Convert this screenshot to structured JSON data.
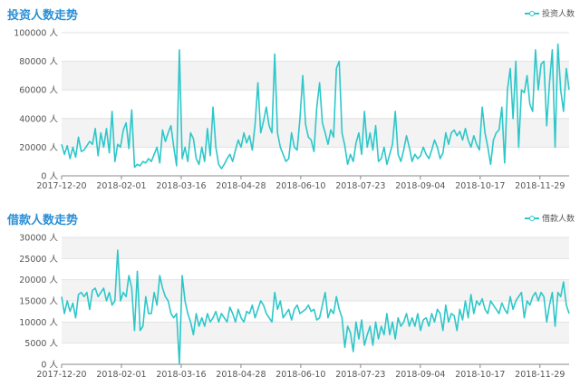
{
  "chart_data": [
    {
      "type": "line",
      "title": "投资人数走势",
      "legend": "投资人数",
      "legend_position": "top-right",
      "color": "#2ec7c9",
      "grid": true,
      "ylim": [
        0,
        100000
      ],
      "yticks": [
        "0 人",
        "20000 人",
        "40000 人",
        "60000 人",
        "80000 人",
        "100000 人"
      ],
      "xticks": [
        "2017-12-20",
        "2018-02-01",
        "2018-03-16",
        "2018-04-28",
        "2018-06-10",
        "2018-07-23",
        "2018-09-04",
        "2018-10-17",
        "2018-11-29"
      ],
      "x_start": "2017-12-20",
      "x_end": "2018-12-20",
      "series": [
        {
          "values": [
            22000,
            15000,
            21000,
            12000,
            20000,
            13000,
            27000,
            17000,
            18000,
            21000,
            24000,
            22000,
            33000,
            14000,
            30000,
            20000,
            33000,
            16000,
            45000,
            10000,
            22000,
            20000,
            32000,
            37000,
            19000,
            46000,
            6000,
            8000,
            7000,
            10000,
            9000,
            12000,
            10000,
            15000,
            20000,
            9000,
            32000,
            24000,
            30000,
            35000,
            20000,
            7000,
            88000,
            12000,
            20000,
            10000,
            30000,
            26000,
            12000,
            8000,
            20000,
            10000,
            33000,
            14000,
            48000,
            20000,
            8000,
            5000,
            8000,
            12000,
            15000,
            10000,
            18000,
            25000,
            20000,
            30000,
            23000,
            28000,
            18000,
            36000,
            65000,
            30000,
            38000,
            48000,
            35000,
            30000,
            85000,
            30000,
            20000,
            15000,
            10000,
            12000,
            30000,
            20000,
            18000,
            40000,
            70000,
            36000,
            27000,
            25000,
            17000,
            48000,
            65000,
            37000,
            30000,
            22000,
            32000,
            27000,
            75000,
            80000,
            30000,
            21000,
            8000,
            15000,
            10000,
            23000,
            30000,
            15000,
            45000,
            20000,
            30000,
            18000,
            35000,
            10000,
            12000,
            20000,
            8000,
            15000,
            22000,
            45000,
            15000,
            10000,
            18000,
            28000,
            20000,
            10000,
            15000,
            12000,
            14000,
            20000,
            15000,
            12000,
            18000,
            25000,
            20000,
            12000,
            16000,
            30000,
            22000,
            30000,
            32000,
            28000,
            31000,
            25000,
            33000,
            25000,
            20000,
            28000,
            22000,
            18000,
            48000,
            30000,
            20000,
            8000,
            25000,
            30000,
            32000,
            48000,
            9000,
            60000,
            75000,
            40000,
            80000,
            20000,
            60000,
            58000,
            70000,
            50000,
            45000,
            88000,
            60000,
            78000,
            80000,
            35000,
            65000,
            88000,
            20000,
            92000,
            60000,
            45000,
            75000,
            60000
          ]
        }
      ]
    },
    {
      "type": "line",
      "title": "借款人数走势",
      "legend": "借款人数",
      "legend_position": "top-right",
      "color": "#2ec7c9",
      "grid": true,
      "ylim": [
        0,
        30000
      ],
      "yticks": [
        "0 人",
        "5000 人",
        "10000 人",
        "15000 人",
        "20000 人",
        "25000 人",
        "30000 人"
      ],
      "xticks": [
        "2017-12-20",
        "2018-02-01",
        "2018-03-16",
        "2018-04-28",
        "2018-06-10",
        "2018-07-23",
        "2018-09-04",
        "2018-10-17",
        "2018-11-29"
      ],
      "x_start": "2017-12-20",
      "x_end": "2018-12-20",
      "series": [
        {
          "values": [
            16000,
            12000,
            15000,
            12500,
            14500,
            11000,
            16500,
            17000,
            16000,
            17000,
            13000,
            17500,
            18000,
            16000,
            17000,
            18000,
            15000,
            17000,
            14000,
            15000,
            27000,
            15000,
            17000,
            16000,
            21000,
            18000,
            8000,
            22000,
            8000,
            9000,
            16000,
            12000,
            12000,
            17000,
            14000,
            21000,
            18000,
            16000,
            15000,
            12000,
            11000,
            12000,
            0,
            21000,
            15000,
            12000,
            10000,
            7000,
            12000,
            9000,
            11000,
            9000,
            12000,
            10000,
            11000,
            12500,
            10000,
            12000,
            11000,
            10000,
            13500,
            12000,
            10000,
            13000,
            11000,
            10000,
            12500,
            12000,
            14000,
            11000,
            13000,
            15000,
            14000,
            12000,
            11000,
            10000,
            17000,
            13000,
            15000,
            11000,
            12000,
            13000,
            10500,
            13000,
            14000,
            12000,
            12500,
            13000,
            14000,
            12500,
            13000,
            10500,
            11000,
            14000,
            17000,
            11000,
            13000,
            12000,
            16000,
            13000,
            11000,
            4000,
            9000,
            7500,
            3000,
            10000,
            6000,
            10500,
            4500,
            7000,
            9000,
            4500,
            10000,
            6000,
            9000,
            7000,
            12000,
            7000,
            10000,
            6000,
            11000,
            9000,
            10000,
            12000,
            9000,
            11000,
            9000,
            12000,
            8000,
            10500,
            11000,
            9000,
            12000,
            10000,
            13000,
            12000,
            8000,
            14000,
            10000,
            12000,
            11500,
            8000,
            13000,
            10500,
            15000,
            11000,
            16500,
            12000,
            15000,
            14000,
            15500,
            13000,
            12000,
            15000,
            14000,
            13000,
            12000,
            14500,
            13000,
            12000,
            16000,
            13000,
            15000,
            16000,
            17000,
            11000,
            15000,
            14000,
            16000,
            17000,
            15000,
            17000,
            16000,
            10000,
            14000,
            17000,
            9000,
            17000,
            16000,
            19500,
            14000,
            12000
          ]
        }
      ]
    }
  ]
}
